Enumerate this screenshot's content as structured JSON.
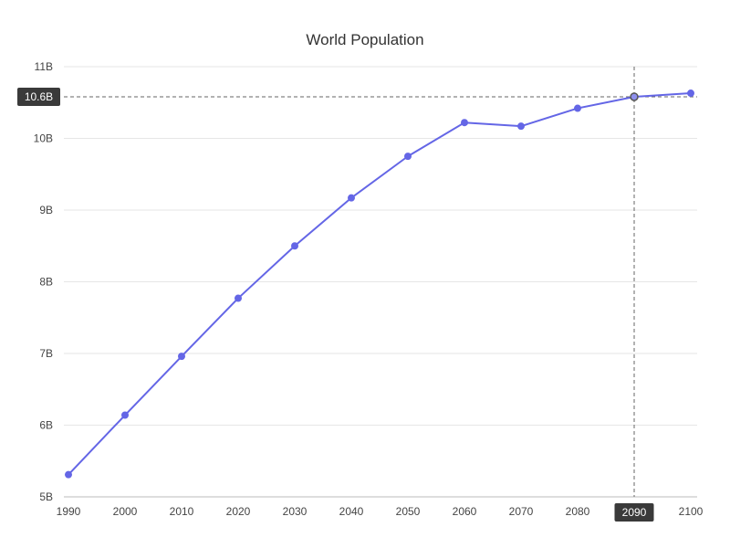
{
  "chart_data": {
    "type": "line",
    "title": "World Population",
    "x": [
      "1990",
      "2000",
      "2010",
      "2020",
      "2030",
      "2040",
      "2050",
      "2060",
      "2070",
      "2080",
      "2090",
      "2100"
    ],
    "series": [
      {
        "values": [
          5.31,
          6.14,
          6.96,
          7.77,
          8.5,
          9.17,
          9.75,
          10.22,
          10.17,
          10.42,
          10.58,
          10.63
        ]
      }
    ],
    "y_ticks": [
      "5B",
      "6B",
      "7B",
      "8B",
      "9B",
      "10B",
      "11B"
    ],
    "ylim": [
      5,
      11
    ],
    "grid": true,
    "legend": "none",
    "colors": {
      "series": "#6466e6",
      "grid": "#e6e6e6",
      "axis": "#bbbbbb",
      "crosshair": "#666666",
      "pointer_bg": "#3a3a3a",
      "pointer_text": "#ffffff"
    },
    "crosshair": {
      "x_label": "2090",
      "y_label": "10.6B",
      "y_value": 10.58
    }
  }
}
